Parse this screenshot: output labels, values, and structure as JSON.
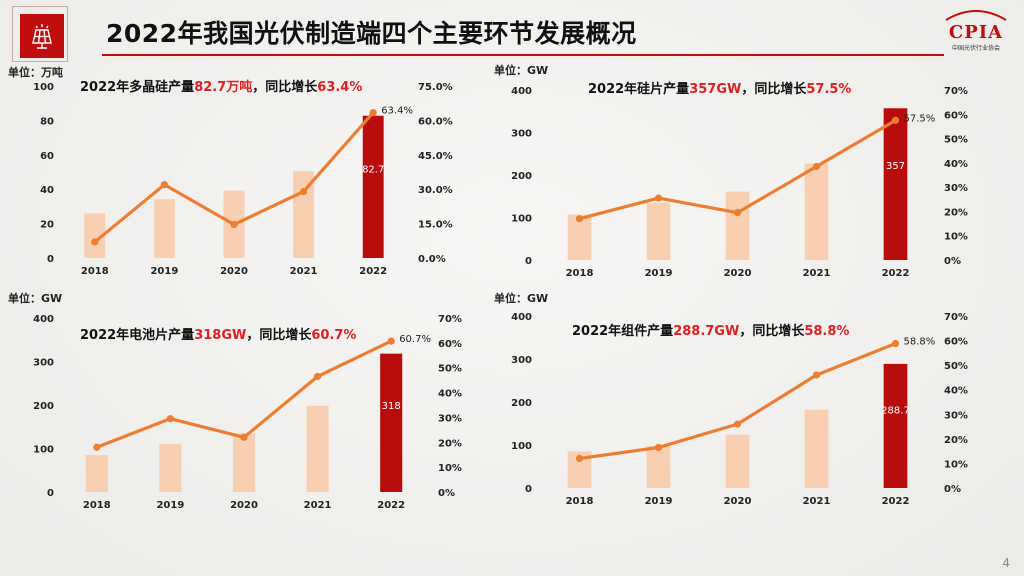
{
  "header": {
    "title": "2022年我国光伏制造端四个主要环节发展概况",
    "logo_icon": "solar-panel-icon",
    "brand_logo_text": "CPIA",
    "brand_logo_subtext": "中国光伏行业协会",
    "brand_color": "#c00d0d"
  },
  "page_number": "4",
  "colors": {
    "bar": "#f8cfb0",
    "bar_highlight": "#b90c0c",
    "line": "#ed7d31",
    "title_highlight": "#e02020"
  },
  "chart_data": [
    {
      "type": "bar",
      "unit_label": "单位：万吨",
      "title_pre": "2022年多晶硅产量",
      "title_val": "82.7万吨",
      "title_mid": "，同比增长",
      "title_pct": "63.4%",
      "categories": [
        "2018",
        "2019",
        "2020",
        "2021",
        "2022"
      ],
      "values": [
        25.9,
        34.2,
        39.2,
        50.5,
        82.7
      ],
      "bar_label": "82.7",
      "line_values": [
        7,
        32,
        14.6,
        29,
        63.4
      ],
      "line_label": "63.4%",
      "ylim": [
        0,
        100
      ],
      "yticks": [
        "0",
        "20",
        "40",
        "60",
        "80",
        "100"
      ],
      "y2lim": [
        0,
        75
      ],
      "y2ticks": [
        "0.0%",
        "15.0%",
        "30.0%",
        "45.0%",
        "60.0%",
        "75.0%"
      ],
      "grid": false
    },
    {
      "type": "bar",
      "unit_label": "单位：GW",
      "title_pre": "2022年硅片产量",
      "title_val": "357GW",
      "title_mid": "，同比增长",
      "title_pct": "57.5%",
      "categories": [
        "2018",
        "2019",
        "2020",
        "2021",
        "2022"
      ],
      "values": [
        107,
        135,
        161,
        227,
        357
      ],
      "bar_label": "357",
      "line_values": [
        17,
        25.5,
        19.5,
        38.5,
        57.5
      ],
      "line_label": "57.5%",
      "ylim": [
        0,
        400
      ],
      "yticks": [
        "0",
        "100",
        "200",
        "300",
        "400"
      ],
      "y2lim": [
        0,
        70
      ],
      "y2ticks": [
        "0%",
        "10%",
        "20%",
        "30%",
        "40%",
        "50%",
        "60%",
        "70%"
      ],
      "grid": false
    },
    {
      "type": "bar",
      "unit_label": "单位：GW",
      "title_pre": "2022年电池片产量",
      "title_val": "318GW",
      "title_mid": "，同比增长",
      "title_pct": "60.7%",
      "categories": [
        "2018",
        "2019",
        "2020",
        "2021",
        "2022"
      ],
      "values": [
        85,
        110,
        135,
        198,
        318
      ],
      "bar_label": "318",
      "line_values": [
        18,
        29.5,
        22,
        46.5,
        60.7
      ],
      "line_label": "60.7%",
      "ylim": [
        0,
        400
      ],
      "yticks": [
        "0",
        "100",
        "200",
        "300",
        "400"
      ],
      "y2lim": [
        0,
        70
      ],
      "y2ticks": [
        "0%",
        "10%",
        "20%",
        "30%",
        "40%",
        "50%",
        "60%",
        "70%"
      ],
      "grid": false
    },
    {
      "type": "bar",
      "unit_label": "单位：GW",
      "title_pre": "2022年组件产量",
      "title_val": "288.7GW",
      "title_mid": "，同比增长",
      "title_pct": "58.8%",
      "categories": [
        "2018",
        "2019",
        "2020",
        "2021",
        "2022"
      ],
      "values": [
        85,
        98,
        124,
        182,
        288.7
      ],
      "bar_label": "288.7",
      "line_values": [
        12,
        16.5,
        26,
        46,
        58.8
      ],
      "line_label": "58.8%",
      "ylim": [
        0,
        400
      ],
      "yticks": [
        "0",
        "100",
        "200",
        "300",
        "400"
      ],
      "y2lim": [
        0,
        70
      ],
      "y2ticks": [
        "0%",
        "10%",
        "20%",
        "30%",
        "40%",
        "50%",
        "60%",
        "70%"
      ],
      "grid": false
    }
  ]
}
